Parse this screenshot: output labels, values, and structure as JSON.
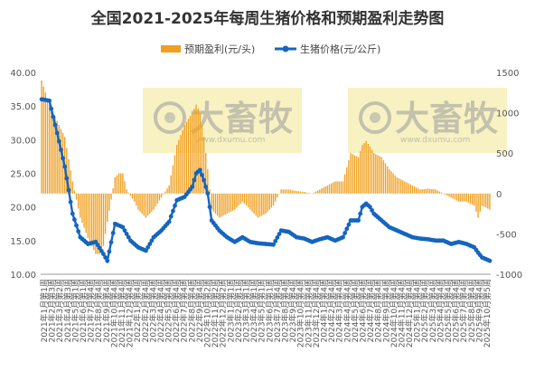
{
  "chart_data": {
    "type": "bar+line",
    "title": "全国2021-2025年每周生猪价格和预期盈利走势图",
    "legend": {
      "position": "top",
      "entries": [
        "预期盈利(元/头)",
        "生猪价格(元/公斤)"
      ]
    },
    "colors": {
      "profit_bar": "#F0A020",
      "price_line": "#1565C0",
      "watermark_bg": "#F7F0B8"
    },
    "watermark": {
      "brand": "大畜牧",
      "url": "www.dxumu.com"
    },
    "y_left": {
      "label": "",
      "range": [
        10,
        40
      ],
      "ticks": [
        "10.00",
        "15.00",
        "20.00",
        "25.00",
        "30.00",
        "35.00",
        "40.00"
      ]
    },
    "y_right": {
      "label": "",
      "range": [
        -1000,
        1500
      ],
      "ticks": [
        "-1000",
        "-500",
        "0",
        "500",
        "1000",
        "1500"
      ]
    },
    "grid": false,
    "x_tick_labels": [
      "2021年1月第1周",
      "2021年2月第3周",
      "2021年3月第2周",
      "2021年4月第3周",
      "2021年5月第1周",
      "2021年6月第1周",
      "2021年7月第4周",
      "2021年8月第4周",
      "2021年9月第4周",
      "2021年10月第4周",
      "2021年11月第4周",
      "2021年12月第4周",
      "2022年1月第4周",
      "2022年2月第4周",
      "2022年3月第4周",
      "2022年4月第4周",
      "2022年5月第4周",
      "2022年6月第4周",
      "2022年7月第4周",
      "2022年8月第4周",
      "2022年9月第4周",
      "2022年10月第2周",
      "2022年11月第2周",
      "2022年12月第2周",
      "2023年1月第1周",
      "2023年2月第1周",
      "2023年3月第1周",
      "2023年4月第1周",
      "2023年5月第1周",
      "2023年6月第1周",
      "2023年7月第4周",
      "2023年8月第4周",
      "2023年9月第4周",
      "2023年10月第4周",
      "2023年11月第4周",
      "2023年12月第4周",
      "2024年1月第4周",
      "2024年2月第4周",
      "2024年3月第4周",
      "2024年4月第4周",
      "2024年5月第4周",
      "2024年6月第4周",
      "2024年7月第4周",
      "2024年8月第4周",
      "2024年9月第4周",
      "2024年10月第4周",
      "2024年11月第4周",
      "2024年12月第4周",
      "2025年1月第4周",
      "2025年2月第4周",
      "2025年3月第4周",
      "2025年4月第4周",
      "2025年5月第4周",
      "2025年6月第4周",
      "2025年7月第4周",
      "2025年8月第4周",
      "2025年9月第4周",
      "2025年10月第5周"
    ],
    "series": [
      {
        "name": "生猪价格(元/公斤)",
        "axis": "left",
        "type": "line",
        "key_points": [
          [
            0,
            36.0
          ],
          [
            4,
            35.8
          ],
          [
            8,
            31.0
          ],
          [
            12,
            26.0
          ],
          [
            16,
            19.0
          ],
          [
            20,
            15.5
          ],
          [
            24,
            14.5
          ],
          [
            28,
            14.8
          ],
          [
            32,
            13.0
          ],
          [
            34,
            12.0
          ],
          [
            38,
            17.5
          ],
          [
            42,
            17.0
          ],
          [
            46,
            15.0
          ],
          [
            50,
            14.0
          ],
          [
            54,
            13.5
          ],
          [
            58,
            15.5
          ],
          [
            62,
            16.5
          ],
          [
            66,
            17.8
          ],
          [
            70,
            21.0
          ],
          [
            74,
            21.5
          ],
          [
            78,
            23.0
          ],
          [
            80,
            25.0
          ],
          [
            82,
            25.5
          ],
          [
            84,
            24.0
          ],
          [
            86,
            22.0
          ],
          [
            88,
            18.0
          ],
          [
            92,
            16.5
          ],
          [
            96,
            15.5
          ],
          [
            100,
            14.8
          ],
          [
            104,
            15.5
          ],
          [
            108,
            14.8
          ],
          [
            112,
            14.6
          ],
          [
            116,
            14.5
          ],
          [
            120,
            14.4
          ],
          [
            124,
            16.5
          ],
          [
            128,
            16.3
          ],
          [
            132,
            15.5
          ],
          [
            136,
            15.3
          ],
          [
            140,
            14.8
          ],
          [
            144,
            15.2
          ],
          [
            148,
            15.5
          ],
          [
            152,
            15.0
          ],
          [
            156,
            15.5
          ],
          [
            160,
            18.0
          ],
          [
            164,
            18.0
          ],
          [
            166,
            20.0
          ],
          [
            168,
            20.5
          ],
          [
            170,
            20.0
          ],
          [
            172,
            19.0
          ],
          [
            176,
            18.0
          ],
          [
            180,
            17.0
          ],
          [
            184,
            16.5
          ],
          [
            188,
            16.0
          ],
          [
            192,
            15.5
          ],
          [
            196,
            15.3
          ],
          [
            200,
            15.2
          ],
          [
            204,
            15.0
          ],
          [
            208,
            15.0
          ],
          [
            212,
            14.5
          ],
          [
            216,
            14.8
          ],
          [
            220,
            14.5
          ],
          [
            224,
            14.0
          ],
          [
            226,
            13.2
          ],
          [
            228,
            12.5
          ],
          [
            232,
            12.0
          ]
        ]
      },
      {
        "name": "预期盈利(元/头)",
        "axis": "right",
        "type": "bar",
        "key_points": [
          [
            0,
            1400
          ],
          [
            4,
            1100
          ],
          [
            8,
            900
          ],
          [
            12,
            700
          ],
          [
            16,
            150
          ],
          [
            20,
            -300
          ],
          [
            24,
            -550
          ],
          [
            28,
            -750
          ],
          [
            30,
            -750
          ],
          [
            32,
            -650
          ],
          [
            34,
            -350
          ],
          [
            38,
            200
          ],
          [
            40,
            250
          ],
          [
            42,
            250
          ],
          [
            44,
            50
          ],
          [
            48,
            -100
          ],
          [
            50,
            -200
          ],
          [
            54,
            -300
          ],
          [
            58,
            -200
          ],
          [
            62,
            -50
          ],
          [
            66,
            100
          ],
          [
            70,
            600
          ],
          [
            74,
            850
          ],
          [
            78,
            1000
          ],
          [
            80,
            1100
          ],
          [
            82,
            1000
          ],
          [
            84,
            700
          ],
          [
            86,
            300
          ],
          [
            88,
            -200
          ],
          [
            92,
            -300
          ],
          [
            96,
            -250
          ],
          [
            100,
            -200
          ],
          [
            104,
            -100
          ],
          [
            108,
            -200
          ],
          [
            112,
            -300
          ],
          [
            116,
            -250
          ],
          [
            120,
            -150
          ],
          [
            124,
            50
          ],
          [
            128,
            50
          ],
          [
            132,
            30
          ],
          [
            136,
            20
          ],
          [
            140,
            0
          ],
          [
            144,
            50
          ],
          [
            148,
            100
          ],
          [
            152,
            150
          ],
          [
            156,
            150
          ],
          [
            160,
            500
          ],
          [
            164,
            450
          ],
          [
            166,
            600
          ],
          [
            168,
            650
          ],
          [
            170,
            580
          ],
          [
            172,
            500
          ],
          [
            176,
            450
          ],
          [
            180,
            300
          ],
          [
            184,
            200
          ],
          [
            188,
            150
          ],
          [
            192,
            100
          ],
          [
            196,
            50
          ],
          [
            200,
            60
          ],
          [
            204,
            50
          ],
          [
            208,
            0
          ],
          [
            212,
            -50
          ],
          [
            216,
            -100
          ],
          [
            220,
            -100
          ],
          [
            224,
            -150
          ],
          [
            226,
            -300
          ],
          [
            228,
            -150
          ],
          [
            232,
            -200
          ]
        ]
      }
    ],
    "n_weeks": 233
  }
}
